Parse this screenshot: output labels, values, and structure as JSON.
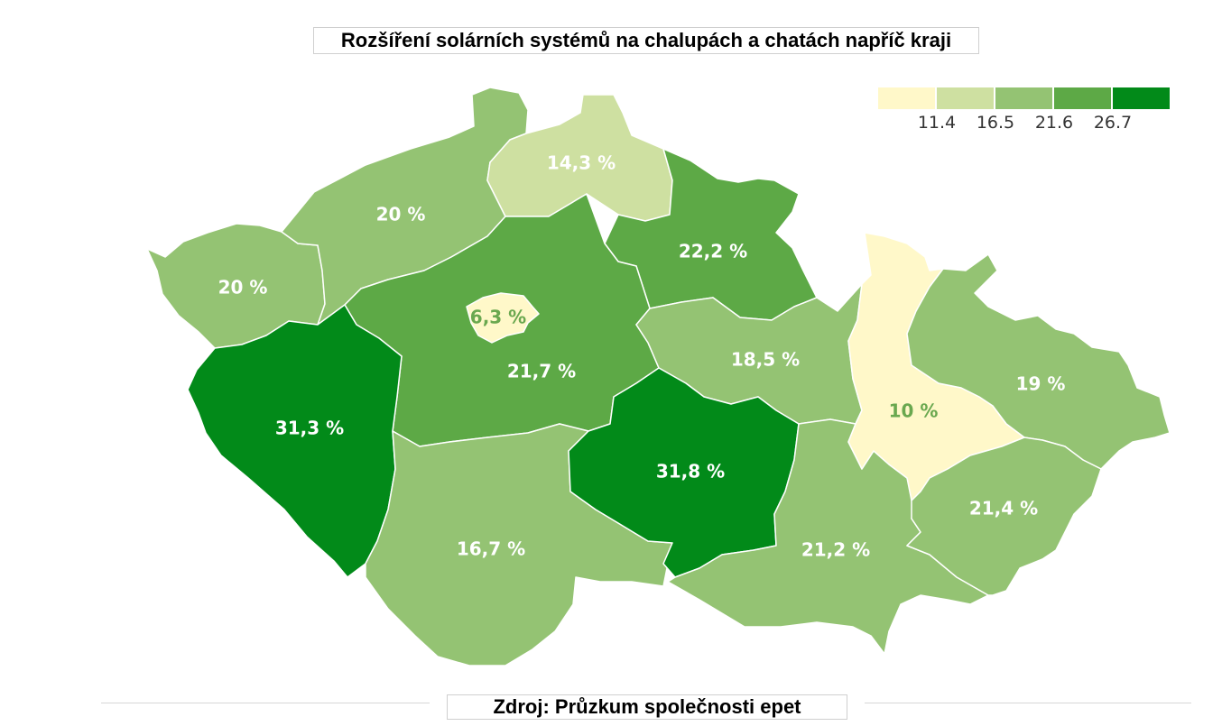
{
  "title": "Rozšíření solárních systémů na chalupách a chatách napříč kraji",
  "source": "Zdroj: Průzkum společnosti epet",
  "legend": {
    "thresholds": [
      "11.4",
      "16.5",
      "21.6",
      "26.7"
    ],
    "colors": [
      "#fff8c9",
      "#cee0a1",
      "#94c373",
      "#5da946",
      "#028a19"
    ]
  },
  "regions": [
    {
      "id": "praha",
      "label": "6,3 %",
      "value": 6.3
    },
    {
      "id": "stredocesky",
      "label": "21,7 %",
      "value": 21.7
    },
    {
      "id": "jihocesky",
      "label": "16,7 %",
      "value": 16.7
    },
    {
      "id": "plzensky",
      "label": "31,3 %",
      "value": 31.3
    },
    {
      "id": "karlovarsky",
      "label": "20 %",
      "value": 20
    },
    {
      "id": "ustecky",
      "label": "20 %",
      "value": 20
    },
    {
      "id": "liberecky",
      "label": "14,3 %",
      "value": 14.3
    },
    {
      "id": "kralovehradecky",
      "label": "22,2 %",
      "value": 22.2
    },
    {
      "id": "pardubicky",
      "label": "18,5 %",
      "value": 18.5
    },
    {
      "id": "vysocina",
      "label": "31,8 %",
      "value": 31.8
    },
    {
      "id": "jihomoravsky",
      "label": "21,2 %",
      "value": 21.2
    },
    {
      "id": "olomoucky",
      "label": "10 %",
      "value": 10
    },
    {
      "id": "moravskoslezsky",
      "label": "19 %",
      "value": 19
    },
    {
      "id": "zlinsky",
      "label": "21,4 %",
      "value": 21.4
    }
  ]
}
